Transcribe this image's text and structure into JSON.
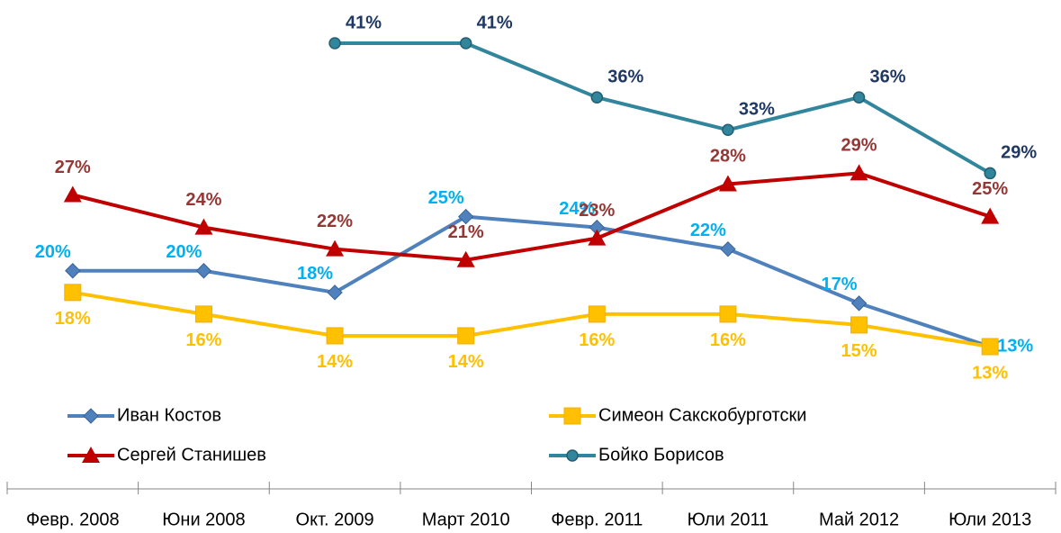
{
  "chart_data": {
    "type": "line",
    "categories": [
      "Февр. 2008",
      "Юни 2008",
      "Окт. 2009",
      "Март 2010",
      "Февр. 2011",
      "Юли 2011",
      "Май 2012",
      "Юли 2013"
    ],
    "series": [
      {
        "name": "Иван Костов",
        "color": "#4f81bd",
        "label_color": "#00b0f0",
        "marker": "diamond",
        "values": [
          20,
          20,
          18,
          25,
          24,
          22,
          17,
          13
        ],
        "value_labels": [
          "20%",
          "20%",
          "18%",
          "25%",
          "24%",
          "22%",
          "17%",
          "13%"
        ]
      },
      {
        "name": "Симеон Сакскобурготски",
        "color": "#ffc000",
        "label_color": "#ffc000",
        "marker": "square",
        "values": [
          18,
          16,
          14,
          14,
          16,
          16,
          15,
          13
        ],
        "value_labels": [
          "18%",
          "16%",
          "14%",
          "14%",
          "16%",
          "16%",
          "15%",
          "13%"
        ]
      },
      {
        "name": "Сергей Станишев",
        "color": "#c00000",
        "label_color": "#953735",
        "marker": "triangle",
        "values": [
          27,
          24,
          22,
          21,
          23,
          28,
          29,
          25
        ],
        "value_labels": [
          "27%",
          "24%",
          "22%",
          "21%",
          "23%",
          "28%",
          "29%",
          "25%"
        ]
      },
      {
        "name": "Бойко Борисов",
        "color": "#31859c",
        "label_color": "#1f3864",
        "marker": "circle",
        "values": [
          null,
          null,
          41,
          41,
          36,
          33,
          36,
          29
        ],
        "value_labels": [
          null,
          null,
          "41%",
          "41%",
          "36%",
          "33%",
          "36%",
          "29%"
        ]
      }
    ],
    "legend": "bottom"
  }
}
